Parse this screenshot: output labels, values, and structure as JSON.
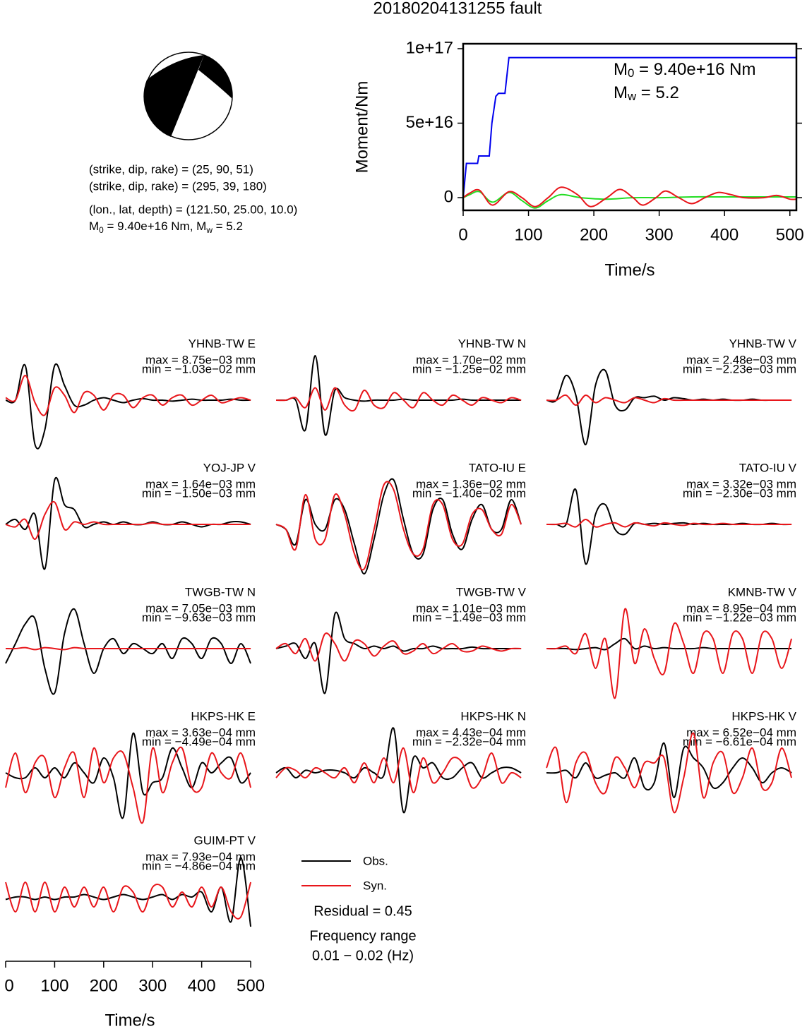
{
  "title": "20180204131255 fault",
  "info": {
    "planes": [
      "(strike, dip, rake) = (25, 90, 51)",
      "(strike, dip, rake) = (295, 39, 180)"
    ],
    "location": "(lon., lat, depth) = (121.50, 25.00, 10.0)",
    "moment": [
      {
        "symbol": "M",
        "sub": "0",
        "text": " = 9.40e+16 Nm, "
      },
      {
        "symbol": "M",
        "sub": "w",
        "text": " = 5.2"
      }
    ]
  },
  "chart_data": {
    "type": "line",
    "xlabel": "Time/s",
    "ylabel": "Moment/Nm",
    "xlim": [
      0,
      510
    ],
    "ylim": [
      -8500000000000000.0,
      1.033e+17
    ],
    "xticks": [
      0,
      100,
      200,
      300,
      400,
      500
    ],
    "yticks": [
      0,
      {
        "value": 5e+16,
        "label": "5e+16"
      },
      {
        "value": 1e+17,
        "label": "1e+17"
      }
    ],
    "annotations": [
      {
        "symbol": "M",
        "sub": "0",
        "text": " = 9.40e+16 Nm"
      },
      {
        "symbol": "M",
        "sub": "w",
        "text": " = 5.2"
      }
    ],
    "series": [
      {
        "color": "#0000ee",
        "smooth": false,
        "x": [
          0,
          5,
          22,
          24,
          40,
          44,
          50,
          54,
          64,
          70,
          510
        ],
        "values": [
          0,
          2.3e+16,
          2.3e+16,
          2.8e+16,
          2.8e+16,
          5e+16,
          6.8e+16,
          7e+16,
          7e+16,
          9.4e+16,
          9.4e+16
        ]
      },
      {
        "color": "#22dd22",
        "smooth": true,
        "x": [
          0,
          10,
          25,
          45,
          70,
          90,
          110,
          130,
          150,
          180,
          220,
          260,
          300,
          350,
          400,
          450,
          510
        ],
        "values": [
          0,
          2000000000000000.0,
          4000000000000000.0,
          -3000000000000000.0,
          3500000000000000.0,
          -2000000000000000.0,
          -7000000000000000.0,
          -2000000000000000.0,
          2000000000000000.0,
          0,
          -1000000000000000.0,
          0,
          0,
          500000000000000.0,
          500000000000000.0,
          500000000000000.0,
          500000000000000.0
        ]
      },
      {
        "color": "#e8161b",
        "smooth": true,
        "x": [
          0,
          10,
          25,
          45,
          70,
          90,
          110,
          130,
          150,
          175,
          195,
          220,
          240,
          260,
          275,
          295,
          310,
          330,
          350,
          370,
          390,
          410,
          430,
          460,
          480,
          500,
          510
        ],
        "values": [
          0,
          3000000000000000.0,
          5000000000000000.0,
          -5000000000000000.0,
          4000000000000000.0,
          0,
          -6000000000000000.0,
          0,
          7000000000000000.0,
          2000000000000000.0,
          -6000000000000000.0,
          0,
          5500000000000000.0,
          0,
          -5000000000000000.0,
          0,
          4500000000000000.0,
          0,
          -4000000000000000.0,
          0,
          3500000000000000.0,
          2000000000000000.0,
          0,
          0,
          1500000000000000.0,
          -1000000000000000.0,
          -1000000000000000.0
        ]
      }
    ]
  },
  "waveforms": {
    "xlabel": "Time/s",
    "xlim": [
      0,
      510
    ],
    "xticks": [
      0,
      100,
      200,
      300,
      400,
      500
    ],
    "obs_color": "#000000",
    "syn_color": "#e8161b",
    "time": [
      0,
      20,
      40,
      60,
      80,
      100,
      120,
      140,
      160,
      180,
      200,
      220,
      240,
      260,
      280,
      300,
      320,
      340,
      360,
      380,
      400,
      420,
      440,
      460,
      480,
      500
    ],
    "panels": [
      {
        "station": "YHNB-TW E",
        "max": "max = 8.75e−03 mm",
        "min": "min = −1.03e−02 mm",
        "obs": [
          0,
          0,
          0.7,
          -0.9,
          -0.6,
          0.7,
          0.3,
          -0.1,
          -0.1,
          0,
          0.05,
          0,
          -0.05,
          0,
          0.03,
          0,
          0,
          -0.02,
          0,
          0.02,
          0,
          0,
          0,
          0.02,
          0,
          0
        ],
        "syn": [
          0.05,
          0,
          0.5,
          -0.05,
          -0.3,
          0.25,
          0.1,
          -0.25,
          0.15,
          0.1,
          -0.2,
          0.1,
          0.1,
          -0.15,
          0.05,
          0.1,
          -0.1,
          0.05,
          0.1,
          -0.1,
          0,
          0.1,
          -0.05,
          0,
          0.05,
          0
        ]
      },
      {
        "station": "YHNB-TW N",
        "max": "max = 1.70e−02 mm",
        "min": "min = −1.25e−02 mm",
        "obs": [
          0,
          0,
          0,
          -0.6,
          0.9,
          -0.7,
          0.2,
          0.05,
          0,
          -0.02,
          0,
          0,
          0,
          0.02,
          0,
          0,
          0,
          0,
          0,
          0.02,
          0,
          0,
          0,
          0,
          0,
          0
        ],
        "syn": [
          0,
          0,
          0.05,
          -0.15,
          0.25,
          -0.2,
          0.25,
          -0.1,
          -0.2,
          0.2,
          -0.1,
          -0.15,
          0.15,
          0,
          -0.15,
          0.15,
          0,
          -0.1,
          0.1,
          0,
          -0.1,
          0.05,
          0,
          -0.05,
          0.05,
          0
        ]
      },
      {
        "station": "YHNB-TW V",
        "max": "max = 2.48e−03 mm",
        "min": "min = −2.23e−03 mm",
        "obs": [
          0,
          0,
          0.5,
          0.1,
          -0.9,
          0.3,
          0.6,
          -0.1,
          -0.2,
          0.05,
          0.05,
          0.08,
          0,
          0.05,
          0.03,
          0,
          0.02,
          0,
          0.02,
          0,
          0,
          0.02,
          0,
          0,
          0,
          0
        ],
        "syn": [
          0,
          0,
          0.1,
          -0.1,
          0.1,
          -0.05,
          0.05,
          0,
          -0.05,
          0.05,
          0,
          -0.05,
          0.03,
          0,
          0,
          0,
          0,
          0,
          0,
          0,
          0,
          0,
          0,
          0,
          0,
          0
        ]
      },
      {
        "station": "YOJ-JP V",
        "max": "max = 1.64e−03 mm",
        "min": "min = −1.50e−03 mm",
        "obs": [
          0,
          0.1,
          -0.1,
          0.2,
          -0.9,
          0.9,
          0.4,
          0.3,
          -0.05,
          0,
          0.05,
          0,
          0.05,
          0,
          0,
          0.05,
          0,
          0,
          0.05,
          0,
          -0.05,
          0,
          0,
          0.05,
          0.05,
          0
        ],
        "syn": [
          0,
          -0.05,
          0.1,
          -0.3,
          0.2,
          0.45,
          -0.1,
          0.05,
          0,
          0.05,
          0,
          0,
          0,
          0,
          0,
          0.03,
          0,
          0,
          0,
          0,
          0,
          0,
          0,
          0,
          0,
          0
        ]
      },
      {
        "station": "TATO-IU E",
        "max": "max = 1.36e−02 mm",
        "min": "min = −1.40e−02 mm",
        "obs": [
          0,
          -0.1,
          -0.4,
          0.5,
          0,
          -0.1,
          0.5,
          0.3,
          -0.4,
          -1,
          -0.3,
          0.6,
          0.9,
          0.1,
          -0.6,
          -0.6,
          0.3,
          0.5,
          -0.2,
          -0.5,
          0.1,
          0.4,
          -0.1,
          -0.1,
          0.5,
          0
        ],
        "syn": [
          0,
          -0.1,
          -0.5,
          0.6,
          -0.3,
          -0.3,
          0.6,
          0.2,
          -0.6,
          -0.9,
          -0.1,
          0.8,
          0.7,
          -0.1,
          -0.6,
          -0.5,
          0.4,
          0.4,
          -0.3,
          -0.4,
          0.2,
          0.3,
          -0.1,
          -0.2,
          0.4,
          0
        ]
      },
      {
        "station": "TATO-IU V",
        "max": "max = 3.32e−03 mm",
        "min": "min = −2.30e−03 mm",
        "obs": [
          0,
          0,
          0,
          0.7,
          -0.8,
          0.2,
          0.4,
          -0.1,
          -0.2,
          0.02,
          0,
          0.02,
          0,
          0.02,
          0.03,
          0,
          0.02,
          0,
          0,
          0,
          0.02,
          0,
          0,
          0.02,
          0,
          0
        ],
        "syn": [
          0,
          0,
          0.02,
          -0.05,
          0.1,
          -0.05,
          0,
          0.03,
          -0.05,
          0.03,
          0,
          -0.03,
          0.03,
          0,
          -0.02,
          0.02,
          0,
          0,
          0.02,
          0,
          0,
          0,
          0,
          0,
          0,
          0
        ]
      },
      {
        "station": "TWGB-TW N",
        "max": "max = 7.05e−03 mm",
        "min": "min = −9.63e−03 mm",
        "obs": [
          -0.3,
          0.1,
          0.5,
          0.6,
          -0.4,
          -0.9,
          0.3,
          0.8,
          0.1,
          -0.5,
          0,
          0.2,
          -0.1,
          0.1,
          0,
          -0.1,
          0.1,
          -0.2,
          0.2,
          0.1,
          -0.2,
          0.2,
          0.1,
          -0.3,
          0.1,
          -0.3
        ],
        "syn": [
          0,
          0,
          0.02,
          -0.02,
          0.02,
          0,
          -0.02,
          0.02,
          0,
          0,
          0,
          0,
          0,
          0,
          0,
          0,
          0,
          0,
          0,
          0,
          0,
          0,
          0,
          0,
          0,
          0
        ]
      },
      {
        "station": "TWGB-TW V",
        "max": "max = 1.01e−03 mm",
        "min": "min = −1.49e−03 mm",
        "obs": [
          0,
          0.05,
          0.1,
          -0.2,
          0.1,
          -0.9,
          0.7,
          0.2,
          0.1,
          0,
          0.05,
          0,
          0.05,
          -0.05,
          0,
          0,
          0.05,
          0,
          0,
          0,
          0.03,
          0,
          0,
          0,
          0,
          0
        ],
        "syn": [
          0,
          0.1,
          -0.1,
          0.2,
          -0.25,
          0.3,
          0.1,
          -0.25,
          0.15,
          0.1,
          -0.15,
          0.05,
          0.15,
          -0.1,
          -0.05,
          0.1,
          -0.1,
          0,
          0.1,
          -0.05,
          -0.05,
          0.05,
          0,
          -0.05,
          0,
          0
        ]
      },
      {
        "station": "KMNB-TW V",
        "max": "max = 8.95e−04 mm",
        "min": "min = −1.22e−03 mm",
        "obs": [
          0,
          0,
          0,
          -0.02,
          0,
          0.02,
          -0.02,
          0.1,
          0.2,
          0,
          0.05,
          0,
          0.02,
          0,
          0,
          0,
          0.02,
          0,
          0,
          0,
          0,
          0,
          0,
          0,
          0,
          0
        ],
        "syn": [
          0,
          0,
          0.05,
          -0.1,
          0.3,
          -0.4,
          0.2,
          -1,
          0.8,
          -0.3,
          0.4,
          -0.2,
          -0.5,
          0.5,
          0.1,
          -0.5,
          0.3,
          0.2,
          -0.5,
          0.3,
          0.2,
          -0.5,
          0.3,
          0.2,
          -0.4,
          0.2
        ]
      },
      {
        "station": "HKPS-HK E",
        "max": "max = 3.63e−04 mm",
        "min": "min = −4.49e−04 mm",
        "obs": [
          0,
          -0.1,
          -0.1,
          0.1,
          -0.1,
          0.1,
          -0.1,
          0.2,
          0,
          -0.2,
          0.3,
          -0.1,
          -0.9,
          0.8,
          -0.4,
          -0.2,
          -0.1,
          0.5,
          0.1,
          -0.3,
          0.2,
          0,
          0.2,
          0.3,
          -0.2,
          0
        ],
        "syn": [
          -0.3,
          0.4,
          -0.4,
          0.2,
          0.3,
          -0.5,
          0.1,
          0.4,
          -0.5,
          0.5,
          -0.2,
          0.3,
          0.4,
          -0.3,
          -1,
          0.5,
          -0.4,
          0.2,
          0.5,
          -0.3,
          -0.3,
          0.4,
          0,
          -0.1,
          0.4,
          -0.3
        ]
      },
      {
        "station": "HKPS-HK N",
        "max": "max = 4.43e−04 mm",
        "min": "min = −2.32e−04 mm",
        "obs": [
          0,
          0.1,
          -0.1,
          0.05,
          0,
          0.05,
          0.05,
          0,
          -0.1,
          0.1,
          0,
          -0.05,
          0.9,
          -0.8,
          0.3,
          0.1,
          0.2,
          -0.1,
          -0.1,
          0.1,
          0.2,
          -0.1,
          0,
          0.1,
          0.1,
          0
        ],
        "syn": [
          -0.1,
          0.1,
          0.05,
          -0.1,
          0.1,
          0,
          -0.1,
          0.1,
          -0.2,
          0.2,
          -0.2,
          0.3,
          -0.2,
          0.5,
          -0.4,
          0.3,
          -0.2,
          0,
          0.3,
          0.2,
          -0.3,
          -0.1,
          0.4,
          -0.2,
          0,
          -0.1
        ]
      },
      {
        "station": "HKPS-HK V",
        "max": "max = 6.52e−04 mm",
        "min": "min = −6.61e−04 mm",
        "obs": [
          0,
          0,
          0.05,
          -0.1,
          0.2,
          -0.1,
          -0.05,
          0,
          -0.1,
          0.3,
          -0.3,
          -0.2,
          0.6,
          -0.5,
          0.5,
          0.3,
          0.1,
          -0.3,
          -0.2,
          0.1,
          0.3,
          0.1,
          -0.2,
          0,
          0.1,
          0
        ],
        "syn": [
          0.1,
          0.5,
          -0.6,
          0.2,
          0.4,
          -0.2,
          -0.4,
          0.3,
          0.1,
          -0.3,
          0.2,
          0.2,
          0.3,
          -0.8,
          -0.1,
          0.8,
          -0.5,
          0.2,
          0.4,
          -0.4,
          -0.1,
          0.5,
          -0.3,
          -0.2,
          0.5,
          -0.1
        ]
      },
      {
        "station": "GUIM-PT V",
        "max": "max = 7.93e−04 mm",
        "min": "min = −4.86e−04 mm",
        "obs": [
          -0.05,
          0,
          0,
          -0.05,
          0,
          -0.05,
          0,
          0,
          0.05,
          0,
          -0.05,
          0,
          0.05,
          0,
          -0.05,
          0,
          0.05,
          -0.05,
          0.05,
          0,
          0.1,
          -0.3,
          0.2,
          -0.5,
          0.8,
          -0.6
        ],
        "syn": [
          0.3,
          -0.3,
          0.3,
          -0.3,
          0.3,
          -0.3,
          0.2,
          -0.2,
          0.2,
          -0.2,
          0.2,
          -0.3,
          0.2,
          0.1,
          -0.3,
          0.2,
          0.2,
          -0.2,
          0.1,
          -0.2,
          0.2,
          -0.2,
          0.2,
          -0.3,
          -0.4,
          0.3
        ]
      }
    ]
  },
  "legend": {
    "obs": "Obs.",
    "syn": "Syn."
  },
  "residual": "Residual = 0.45",
  "frequency": [
    "Frequency range",
    "0.01 − 0.02 (Hz)"
  ]
}
